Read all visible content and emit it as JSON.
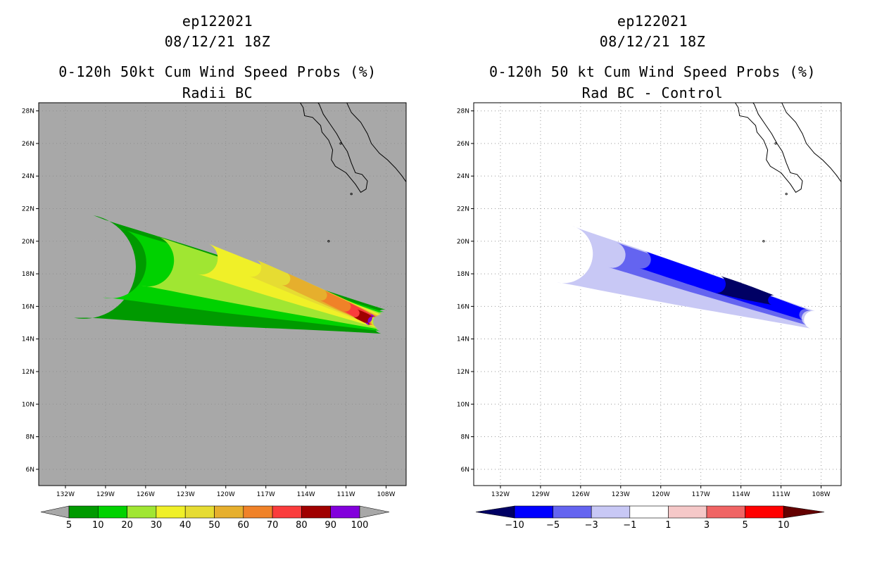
{
  "panels": [
    {
      "storm_id": "ep122021",
      "datetime": "08/12/21 18Z",
      "title": "0-120h 50kt Cum Wind Speed Probs (%)",
      "subtitle": "Radii BC"
    },
    {
      "storm_id": "ep122021",
      "datetime": "08/12/21 18Z",
      "title": "0-120h 50 kt Cum Wind Speed Probs (%)",
      "subtitle": "Rad BC - Control"
    }
  ],
  "chart_data": [
    {
      "type": "heatmap",
      "title": "0-120h 50kt Cum Wind Speed Probs (%)",
      "subtitle": "Radii BC",
      "x_axis": {
        "label": "",
        "range": [
          -134,
          -106.5
        ],
        "ticks": [
          -132,
          -129,
          -126,
          -123,
          -120,
          -117,
          -114,
          -111,
          -108
        ],
        "tick_labels": [
          "132W",
          "129W",
          "126W",
          "123W",
          "120W",
          "117W",
          "114W",
          "111W",
          "108W"
        ]
      },
      "y_axis": {
        "label": "",
        "range": [
          5,
          28.5
        ],
        "ticks": [
          6,
          8,
          10,
          12,
          14,
          16,
          18,
          20,
          22,
          24,
          26,
          28
        ],
        "tick_labels": [
          "6N",
          "8N",
          "10N",
          "12N",
          "14N",
          "16N",
          "18N",
          "20N",
          "22N",
          "24N",
          "26N",
          "28N"
        ]
      },
      "background": "#a8a8a8",
      "contour_levels": [
        5,
        10,
        20,
        30,
        40,
        50,
        60,
        70,
        80,
        90,
        100
      ],
      "colors": [
        "#009a00",
        "#00d200",
        "#a0e632",
        "#f0f028",
        "#e6dc32",
        "#e6af2d",
        "#f08228",
        "#fa3c3c",
        "#a00000",
        "#8200dc"
      ],
      "colorbar_labels": [
        "5",
        "10",
        "20",
        "30",
        "40",
        "50",
        "60",
        "70",
        "80",
        "90",
        "100"
      ],
      "plume": {
        "axis_start": [
          -127.0,
          18.8
        ],
        "axis_end": [
          -108.6,
          15.2
        ],
        "contours": [
          {
            "level": 5,
            "start": [
              -130.6,
              18.6
            ],
            "end": [
              -108.2,
              15.1
            ],
            "half_width_deg": [
              3.2,
              0.75
            ]
          },
          {
            "level": 10,
            "start": [
              -128.6,
              18.8
            ],
            "end": [
              -108.3,
              15.1
            ],
            "half_width_deg": [
              2.2,
              0.6
            ]
          },
          {
            "level": 20,
            "start": [
              -125.8,
              18.9
            ],
            "end": [
              -108.4,
              15.1
            ],
            "half_width_deg": [
              1.6,
              0.5
            ]
          },
          {
            "level": 30,
            "start": [
              -121.8,
              19.0
            ],
            "end": [
              -108.5,
              15.1
            ],
            "half_width_deg": [
              1.0,
              0.42
            ]
          },
          {
            "level": 40,
            "start": [
              -118.0,
              18.4
            ],
            "end": [
              -108.6,
              15.1
            ],
            "half_width_deg": [
              0.55,
              0.36
            ]
          },
          {
            "level": 50,
            "start": [
              -115.6,
              17.7
            ],
            "end": [
              -108.7,
              15.1
            ],
            "half_width_deg": [
              0.4,
              0.32
            ]
          },
          {
            "level": 60,
            "start": [
              -112.8,
              16.7
            ],
            "end": [
              -108.8,
              15.1
            ],
            "half_width_deg": [
              0.32,
              0.3
            ]
          },
          {
            "level": 70,
            "start": [
              -111.0,
              16.0
            ],
            "end": [
              -108.9,
              15.1
            ],
            "half_width_deg": [
              0.3,
              0.28
            ]
          },
          {
            "level": 80,
            "start": [
              -110.3,
              15.6
            ],
            "end": [
              -109.0,
              15.1
            ],
            "half_width_deg": [
              0.26,
              0.26
            ]
          },
          {
            "level": 90,
            "start": [
              -109.4,
              15.3
            ],
            "end": [
              -109.0,
              15.1
            ],
            "half_width_deg": [
              0.3,
              0.3
            ]
          }
        ]
      }
    },
    {
      "type": "heatmap",
      "title": "0-120h 50 kt Cum Wind Speed Probs (%)",
      "subtitle": "Rad BC - Control",
      "x_axis": {
        "label": "",
        "range": [
          -134,
          -106.5
        ],
        "ticks": [
          -132,
          -129,
          -126,
          -123,
          -120,
          -117,
          -114,
          -111,
          -108
        ],
        "tick_labels": [
          "132W",
          "129W",
          "126W",
          "123W",
          "120W",
          "117W",
          "114W",
          "111W",
          "108W"
        ]
      },
      "y_axis": {
        "label": "",
        "range": [
          5,
          28.5
        ],
        "ticks": [
          6,
          8,
          10,
          12,
          14,
          16,
          18,
          20,
          22,
          24,
          26,
          28
        ],
        "tick_labels": [
          "6N",
          "8N",
          "10N",
          "12N",
          "14N",
          "16N",
          "18N",
          "20N",
          "22N",
          "24N",
          "26N",
          "28N"
        ]
      },
      "background": "#ffffff",
      "grid": true,
      "contour_levels": [
        -10,
        -5,
        -3,
        -1,
        1,
        3,
        5,
        10
      ],
      "colors": [
        "#000064",
        "#0000ff",
        "#6464f0",
        "#c8c8f5",
        "#ffffff",
        "#f5c8c8",
        "#f06464",
        "#ff0000",
        "#640000"
      ],
      "colorbar_labels": [
        "-10",
        "-5",
        "-3",
        "-1",
        "1",
        "3",
        "5",
        "10"
      ],
      "plume": {
        "contours": [
          {
            "level": -1,
            "start": [
              -127.2,
              19.3
            ],
            "end": [
              -108.6,
              15.2
            ],
            "half_width_deg": [
              1.8,
              0.55
            ]
          },
          {
            "level": -3,
            "start": [
              -123.6,
              19.2
            ],
            "end": [
              -108.9,
              15.3
            ],
            "half_width_deg": [
              0.8,
              0.45
            ]
          },
          {
            "level": -5,
            "start": [
              -121.4,
              18.9
            ],
            "end": [
              -109.2,
              15.5
            ],
            "half_width_deg": [
              0.55,
              0.35
            ]
          },
          {
            "level": -10,
            "start": [
              -115.8,
              17.4
            ],
            "end": [
              -111.6,
              16.4
            ],
            "half_width_deg": [
              0.55,
              0.3
            ]
          }
        ]
      }
    }
  ]
}
